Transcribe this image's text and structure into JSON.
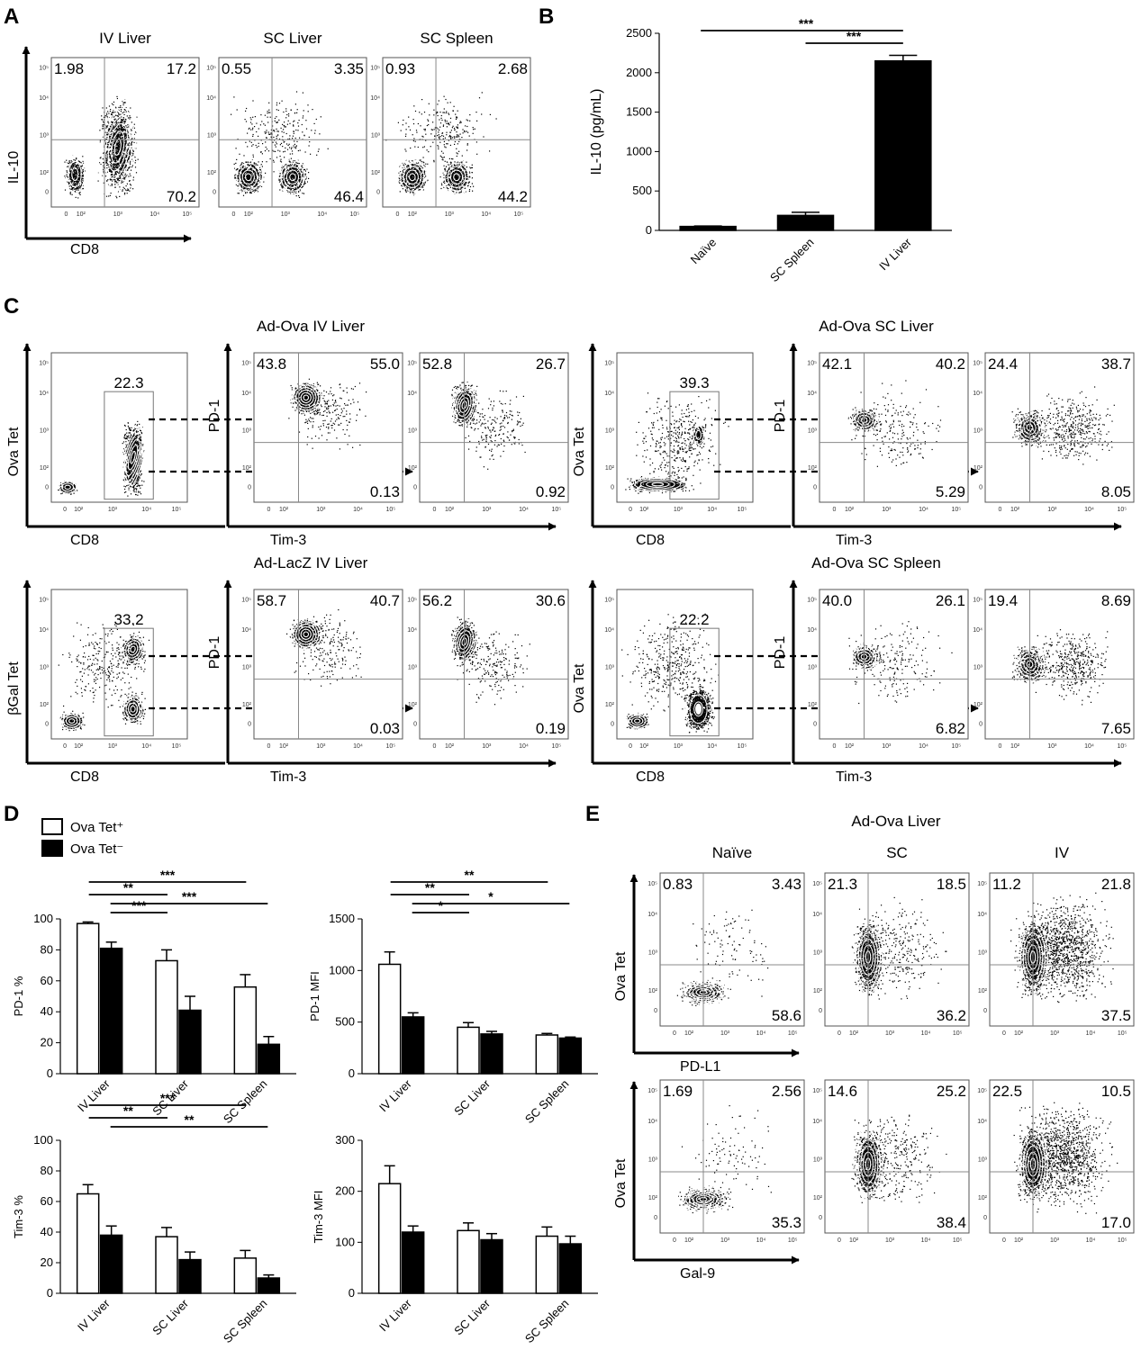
{
  "panels": {
    "A": {
      "letter": "A",
      "x_label": "CD8",
      "y_label": "IL-10",
      "plots": [
        {
          "title": "IV Liver",
          "q": [
            "1.98",
            "17.2",
            "70.2"
          ]
        },
        {
          "title": "SC Liver",
          "q": [
            "0.55",
            "3.35",
            "46.4"
          ]
        },
        {
          "title": "SC Spleen",
          "q": [
            "0.93",
            "2.68",
            "44.2"
          ]
        }
      ]
    },
    "B": {
      "letter": "B",
      "y_label": "IL-10 (pg/mL)",
      "sig": [
        "***",
        "***"
      ]
    },
    "C": {
      "letter": "C",
      "groups": [
        {
          "title": "Ad-Ova IV Liver",
          "y_label": "Ova Tet",
          "gate": "22.3",
          "x_label": "CD8",
          "y2_label": "PD-1",
          "x2_label": "Tim-3",
          "q1": [
            "43.8",
            "55.0",
            "0.13"
          ],
          "q2": [
            "52.8",
            "26.7",
            "0.92"
          ]
        },
        {
          "title": "Ad-Ova SC Liver",
          "y_label": "Ova Tet",
          "gate": "39.3",
          "x_label": "CD8",
          "y2_label": "PD-1",
          "x2_label": "Tim-3",
          "q1": [
            "42.1",
            "40.2",
            "5.29"
          ],
          "q2": [
            "24.4",
            "38.7",
            "8.05"
          ]
        },
        {
          "title": "Ad-LacZ IV Liver",
          "y_label": "βGal Tet",
          "gate": "33.2",
          "x_label": "CD8",
          "y2_label": "PD-1",
          "x2_label": "Tim-3",
          "q1": [
            "58.7",
            "40.7",
            "0.03"
          ],
          "q2": [
            "56.2",
            "30.6",
            "0.19"
          ]
        },
        {
          "title": "Ad-Ova SC Spleen",
          "y_label": "Ova Tet",
          "gate": "22.2",
          "x_label": "CD8",
          "y2_label": "PD-1",
          "x2_label": "Tim-3",
          "q1": [
            "40.0",
            "26.1",
            "6.82"
          ],
          "q2": [
            "19.4",
            "8.69",
            "7.65"
          ]
        }
      ]
    },
    "D": {
      "letter": "D",
      "legend": [
        "Ova Tet⁺",
        "Ova Tet⁻"
      ]
    },
    "E": {
      "letter": "E",
      "title": "Ad-Ova Liver",
      "columns": [
        "Naïve",
        "SC",
        "IV"
      ],
      "y_label": "Ova Tet",
      "rows": [
        {
          "x_label": "PD-L1",
          "q": [
            [
              "0.83",
              "3.43",
              "58.6"
            ],
            [
              "21.3",
              "18.5",
              "36.2"
            ],
            [
              "11.2",
              "21.8",
              "37.5"
            ]
          ]
        },
        {
          "x_label": "Gal-9",
          "q": [
            [
              "1.69",
              "2.56",
              "35.3"
            ],
            [
              "14.6",
              "25.2",
              "38.4"
            ],
            [
              "22.5",
              "10.5",
              "17.0"
            ]
          ]
        }
      ]
    }
  },
  "flow_ticks": {
    "y": [
      "10⁵",
      "10⁴",
      "10³",
      "10²",
      "0"
    ],
    "x": [
      "0",
      "10²",
      "10³",
      "10⁴",
      "10⁵"
    ]
  },
  "chart_data": [
    {
      "type": "bar",
      "panel": "B",
      "categories": [
        "Naïve",
        "SC Spleen",
        "IV Liver"
      ],
      "values": [
        50,
        190,
        2150
      ],
      "errors": [
        5,
        40,
        70
      ],
      "ylabel": "IL-10 (pg/mL)",
      "ylim": [
        0,
        2500
      ],
      "yticks": [
        0,
        500,
        1000,
        1500,
        2000,
        2500
      ]
    },
    {
      "type": "bar",
      "panel": "D",
      "categories": [
        "IV Liver",
        "SC Liver",
        "SC Spleen"
      ],
      "ylabel": "PD-1 %",
      "ylim": [
        0,
        100
      ],
      "yticks": [
        0,
        20,
        40,
        60,
        80,
        100
      ],
      "series": [
        {
          "name": "Ova Tet⁺",
          "values": [
            97,
            73,
            56
          ],
          "errors": [
            1,
            7,
            8
          ]
        },
        {
          "name": "Ova Tet⁻",
          "values": [
            81,
            41,
            19
          ],
          "errors": [
            4,
            9,
            5
          ]
        }
      ],
      "sig": [
        "***",
        "**",
        "***",
        "***"
      ]
    },
    {
      "type": "bar",
      "panel": "D",
      "categories": [
        "IV Liver",
        "SC Liver",
        "SC Spleen"
      ],
      "ylabel": "PD-1 MFI",
      "ylim": [
        0,
        1500
      ],
      "yticks": [
        0,
        500,
        1000,
        1500
      ],
      "series": [
        {
          "name": "Ova Tet⁺",
          "values": [
            1060,
            450,
            375
          ],
          "errors": [
            120,
            45,
            15
          ]
        },
        {
          "name": "Ova Tet⁻",
          "values": [
            550,
            385,
            345
          ],
          "errors": [
            40,
            25,
            10
          ]
        }
      ],
      "sig": [
        "**",
        "**",
        "*",
        "*"
      ]
    },
    {
      "type": "bar",
      "panel": "D",
      "categories": [
        "IV Liver",
        "SC Liver",
        "SC Spleen"
      ],
      "ylabel": "Tim-3 %",
      "ylim": [
        0,
        100
      ],
      "yticks": [
        0,
        20,
        40,
        60,
        80,
        100
      ],
      "series": [
        {
          "name": "Ova Tet⁺",
          "values": [
            65,
            37,
            23
          ],
          "errors": [
            6,
            6,
            5
          ]
        },
        {
          "name": "Ova Tet⁻",
          "values": [
            38,
            22,
            10
          ],
          "errors": [
            6,
            5,
            2
          ]
        }
      ],
      "sig": [
        "***",
        "**",
        "**"
      ]
    },
    {
      "type": "bar",
      "panel": "D",
      "categories": [
        "IV Liver",
        "SC Liver",
        "SC Spleen"
      ],
      "ylabel": "Tim-3 MFI",
      "ylim": [
        0,
        300
      ],
      "yticks": [
        0,
        100,
        200,
        300
      ],
      "series": [
        {
          "name": "Ova Tet⁺",
          "values": [
            215,
            123,
            112
          ],
          "errors": [
            35,
            15,
            18
          ]
        },
        {
          "name": "Ova Tet⁻",
          "values": [
            120,
            105,
            97
          ],
          "errors": [
            12,
            12,
            15
          ]
        }
      ]
    }
  ]
}
